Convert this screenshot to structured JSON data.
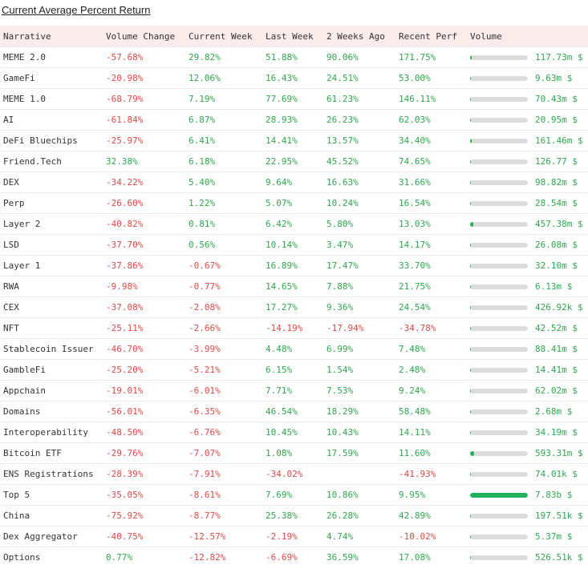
{
  "title": "Current Average Percent Return",
  "columns": [
    "Narrative",
    "Volume Change",
    "Current Week",
    "Last Week",
    "2 Weeks Ago",
    "Recent Perf",
    "Volume"
  ],
  "rows": [
    {
      "narrative": "MEME 2.0",
      "volume_change": "-57.68%",
      "current_week": "29.82%",
      "last_week": "51.88%",
      "two_weeks_ago": "90.06%",
      "recent_perf": "171.75%",
      "volume": "117.73m $",
      "volume_fill": 0.03
    },
    {
      "narrative": "GameFi",
      "volume_change": "-20.98%",
      "current_week": "12.06%",
      "last_week": "16.43%",
      "two_weeks_ago": "24.51%",
      "recent_perf": "53.00%",
      "volume": "9.63m $",
      "volume_fill": 0.02
    },
    {
      "narrative": "MEME 1.0",
      "volume_change": "-68.79%",
      "current_week": "7.19%",
      "last_week": "77.69%",
      "two_weeks_ago": "61.23%",
      "recent_perf": "146.11%",
      "volume": "70.43m $",
      "volume_fill": 0.02
    },
    {
      "narrative": "AI",
      "volume_change": "-61.84%",
      "current_week": "6.87%",
      "last_week": "28.93%",
      "two_weeks_ago": "26.23%",
      "recent_perf": "62.03%",
      "volume": "20.95m $",
      "volume_fill": 0.02
    },
    {
      "narrative": "DeFi Bluechips",
      "volume_change": "-25.97%",
      "current_week": "6.41%",
      "last_week": "14.41%",
      "two_weeks_ago": "13.57%",
      "recent_perf": "34.40%",
      "volume": "161.46m $",
      "volume_fill": 0.03
    },
    {
      "narrative": "Friend.Tech",
      "volume_change": "32.38%",
      "current_week": "6.18%",
      "last_week": "22.95%",
      "two_weeks_ago": "45.52%",
      "recent_perf": "74.65%",
      "volume": "126.77 $",
      "volume_fill": 0.0
    },
    {
      "narrative": "DEX",
      "volume_change": "-34.22%",
      "current_week": "5.40%",
      "last_week": "9.64%",
      "two_weeks_ago": "16.63%",
      "recent_perf": "31.66%",
      "volume": "98.82m $",
      "volume_fill": 0.02
    },
    {
      "narrative": "Perp",
      "volume_change": "-26.60%",
      "current_week": "1.22%",
      "last_week": "5.07%",
      "two_weeks_ago": "10.24%",
      "recent_perf": "16.54%",
      "volume": "28.54m $",
      "volume_fill": 0.02
    },
    {
      "narrative": "Layer 2",
      "volume_change": "-40.82%",
      "current_week": "0.81%",
      "last_week": "6.42%",
      "two_weeks_ago": "5.80%",
      "recent_perf": "13.03%",
      "volume": "457.38m $",
      "volume_fill": 0.06
    },
    {
      "narrative": "LSD",
      "volume_change": "-37.70%",
      "current_week": "0.56%",
      "last_week": "10.14%",
      "two_weeks_ago": "3.47%",
      "recent_perf": "14.17%",
      "volume": "26.08m $",
      "volume_fill": 0.02
    },
    {
      "narrative": "Layer 1",
      "volume_change": "-37.86%",
      "current_week": "-0.67%",
      "last_week": "16.89%",
      "two_weeks_ago": "17.47%",
      "recent_perf": "33.70%",
      "volume": "32.10m $",
      "volume_fill": 0.02
    },
    {
      "narrative": "RWA",
      "volume_change": "-9.98%",
      "current_week": "-0.77%",
      "last_week": "14.65%",
      "two_weeks_ago": "7.88%",
      "recent_perf": "21.75%",
      "volume": "6.13m $",
      "volume_fill": 0.02
    },
    {
      "narrative": "CEX",
      "volume_change": "-37.08%",
      "current_week": "-2.08%",
      "last_week": "17.27%",
      "two_weeks_ago": "9.36%",
      "recent_perf": "24.54%",
      "volume": "426.92k $",
      "volume_fill": 0.0
    },
    {
      "narrative": "NFT",
      "volume_change": "-25.11%",
      "current_week": "-2.66%",
      "last_week": "-14.19%",
      "two_weeks_ago": "-17.94%",
      "recent_perf": "-34.78%",
      "volume": "42.52m $",
      "volume_fill": 0.02
    },
    {
      "narrative": "Stablecoin Issuer",
      "volume_change": "-46.70%",
      "current_week": "-3.99%",
      "last_week": "4.48%",
      "two_weeks_ago": "6.99%",
      "recent_perf": "7.48%",
      "volume": "88.41m $",
      "volume_fill": 0.02
    },
    {
      "narrative": "GambleFi",
      "volume_change": "-25.20%",
      "current_week": "-5.21%",
      "last_week": "6.15%",
      "two_weeks_ago": "1.54%",
      "recent_perf": "2.48%",
      "volume": "14.41m $",
      "volume_fill": 0.02
    },
    {
      "narrative": "Appchain",
      "volume_change": "-19.01%",
      "current_week": "-6.01%",
      "last_week": "7.71%",
      "two_weeks_ago": "7.53%",
      "recent_perf": "9.24%",
      "volume": "62.02m $",
      "volume_fill": 0.02
    },
    {
      "narrative": "Domains",
      "volume_change": "-56.01%",
      "current_week": "-6.35%",
      "last_week": "46.54%",
      "two_weeks_ago": "18.29%",
      "recent_perf": "58.48%",
      "volume": "2.68m $",
      "volume_fill": 0.0
    },
    {
      "narrative": "Interoperability",
      "volume_change": "-48.50%",
      "current_week": "-6.76%",
      "last_week": "10.45%",
      "two_weeks_ago": "10.43%",
      "recent_perf": "14.11%",
      "volume": "34.19m $",
      "volume_fill": 0.02
    },
    {
      "narrative": "Bitcoin ETF",
      "volume_change": "-29.76%",
      "current_week": "-7.07%",
      "last_week": "1.08%",
      "two_weeks_ago": "17.59%",
      "recent_perf": "11.60%",
      "volume": "593.31m $",
      "volume_fill": 0.07
    },
    {
      "narrative": "ENS Registrations",
      "volume_change": "-28.39%",
      "current_week": "-7.91%",
      "last_week": "-34.02%",
      "two_weeks_ago": "",
      "recent_perf": "-41.93%",
      "volume": "74.01k $",
      "volume_fill": 0.0
    },
    {
      "narrative": "Top 5",
      "volume_change": "-35.05%",
      "current_week": "-8.61%",
      "last_week": "7.69%",
      "two_weeks_ago": "10.86%",
      "recent_perf": "9.95%",
      "volume": "7.83b $",
      "volume_fill": 1.0
    },
    {
      "narrative": "China",
      "volume_change": "-75.92%",
      "current_week": "-8.77%",
      "last_week": "25.38%",
      "two_weeks_ago": "26.28%",
      "recent_perf": "42.89%",
      "volume": "197.51k $",
      "volume_fill": 0.0
    },
    {
      "narrative": "Dex Aggregator",
      "volume_change": "-40.75%",
      "current_week": "-12.57%",
      "last_week": "-2.19%",
      "two_weeks_ago": "4.74%",
      "recent_perf": "-10.02%",
      "volume": "5.37m $",
      "volume_fill": 0.0
    },
    {
      "narrative": "Options",
      "volume_change": "0.77%",
      "current_week": "-12.82%",
      "last_week": "-6.69%",
      "two_weeks_ago": "36.59%",
      "recent_perf": "17.08%",
      "volume": "526.51k $",
      "volume_fill": 0.0
    }
  ],
  "colors": {
    "positive": "#2ea84f",
    "negative": "#e24a4a",
    "bar_fill": "#22b35a",
    "bar_track": "#dcdcdc",
    "header_bg": "#fdecec"
  }
}
